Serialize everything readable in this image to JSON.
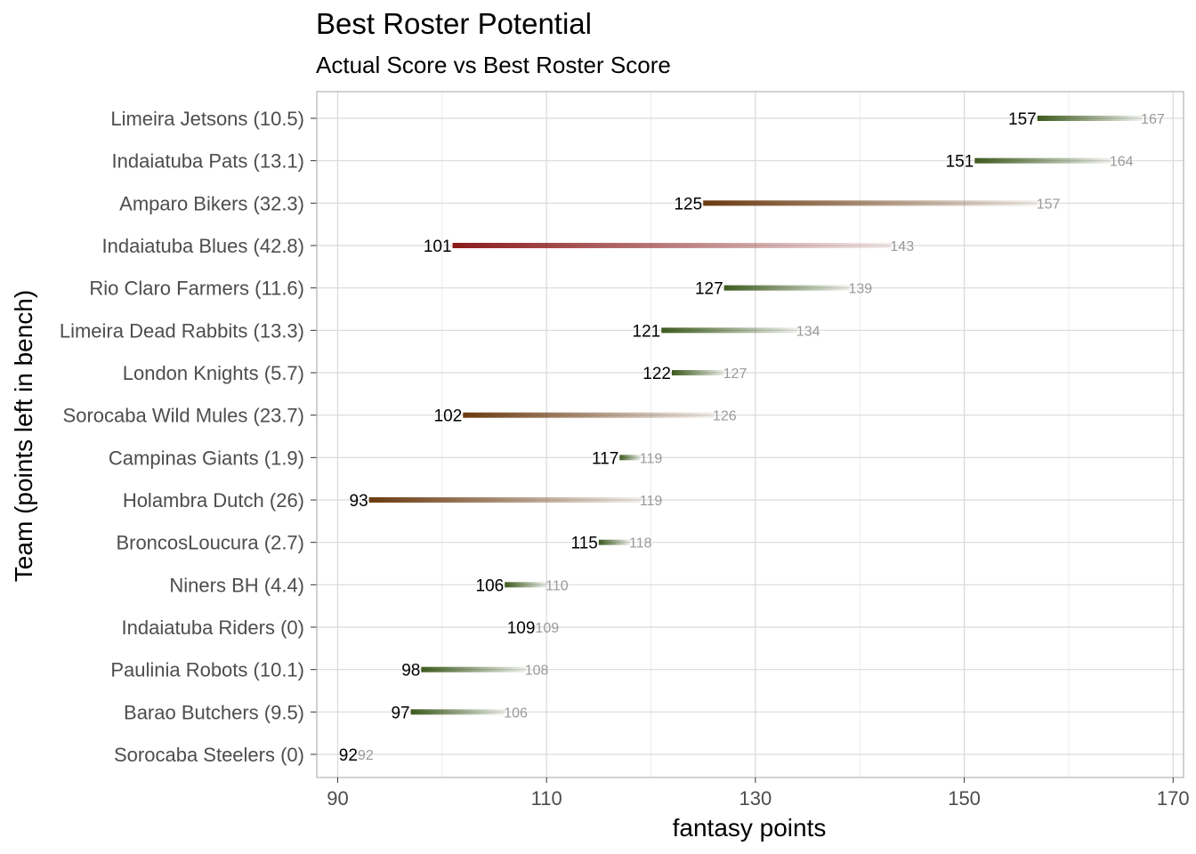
{
  "chart_data": {
    "type": "line",
    "title": "Best Roster Potential",
    "subtitle": "Actual Score vs Best Roster Score",
    "xlabel": "fantasy points",
    "ylabel": "Team (points left in bench)",
    "xlim": [
      88,
      171
    ],
    "xticks": [
      90,
      110,
      130,
      150,
      170
    ],
    "grid": true,
    "colors": {
      "low_loss": "#3d5a1e",
      "mid_loss": "#6b3a10",
      "high_loss": "#8b1a1a",
      "actual_label": "#000000",
      "best_label": "#999999"
    },
    "teams": [
      {
        "label": "Limeira Jetsons (10.5)",
        "actual": 157,
        "best": 167
      },
      {
        "label": "Indaiatuba Pats (13.1)",
        "actual": 151,
        "best": 164
      },
      {
        "label": "Amparo Bikers (32.3)",
        "actual": 125,
        "best": 157
      },
      {
        "label": "Indaiatuba Blues (42.8)",
        "actual": 101,
        "best": 143
      },
      {
        "label": "Rio Claro Farmers (11.6)",
        "actual": 127,
        "best": 139
      },
      {
        "label": "Limeira Dead Rabbits (13.3)",
        "actual": 121,
        "best": 134
      },
      {
        "label": "London Knights (5.7)",
        "actual": 122,
        "best": 127
      },
      {
        "label": "Sorocaba Wild Mules (23.7)",
        "actual": 102,
        "best": 126
      },
      {
        "label": "Campinas Giants (1.9)",
        "actual": 117,
        "best": 119
      },
      {
        "label": "Holambra Dutch (26)",
        "actual": 93,
        "best": 119
      },
      {
        "label": "BroncosLoucura (2.7)",
        "actual": 115,
        "best": 118
      },
      {
        "label": "Niners BH (4.4)",
        "actual": 106,
        "best": 110
      },
      {
        "label": "Indaiatuba Riders (0)",
        "actual": 109,
        "best": 109
      },
      {
        "label": "Paulinia Robots (10.1)",
        "actual": 98,
        "best": 108
      },
      {
        "label": "Barao Butchers (9.5)",
        "actual": 97,
        "best": 106
      },
      {
        "label": "Sorocaba Steelers (0)",
        "actual": 92,
        "best": 92
      }
    ]
  }
}
